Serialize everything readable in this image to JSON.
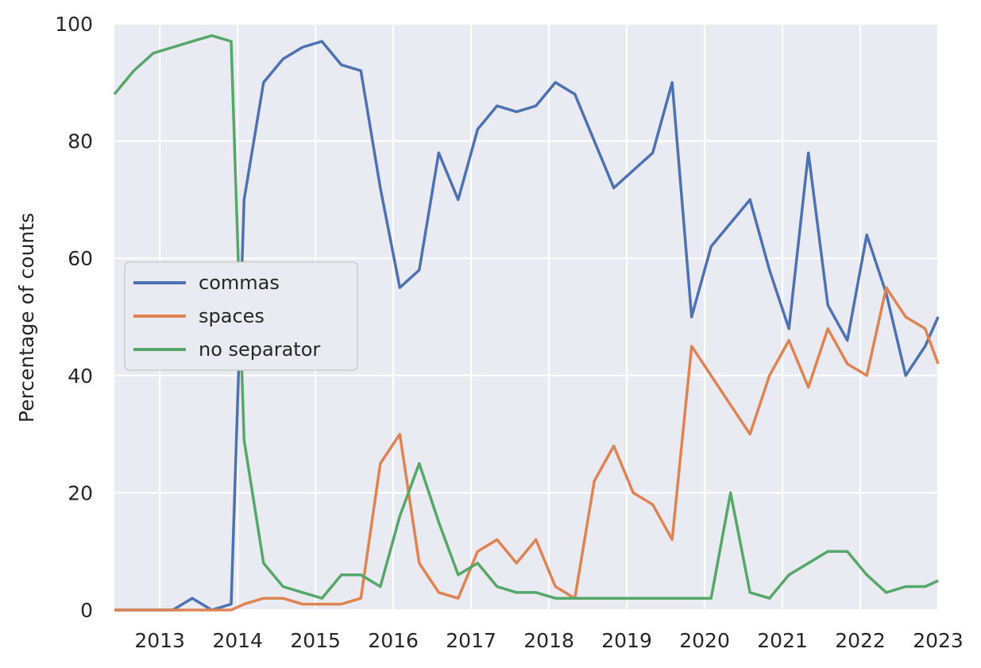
{
  "chart_data": {
    "type": "line",
    "title": "",
    "xlabel": "",
    "ylabel": "Percentage of counts",
    "x_ticks": [
      "2013",
      "2014",
      "2015",
      "2016",
      "2017",
      "2018",
      "2019",
      "2020",
      "2021",
      "2022",
      "2023"
    ],
    "y_ticks": [
      "0",
      "20",
      "40",
      "60",
      "80",
      "100"
    ],
    "xlim": [
      "2012-06",
      "2023-01"
    ],
    "ylim": [
      0,
      100
    ],
    "grid": true,
    "legend_position": "center-left",
    "x": [
      "2012-06",
      "2012-09",
      "2012-12",
      "2013-03",
      "2013-06",
      "2013-09",
      "2013-12",
      "2014-02",
      "2014-05",
      "2014-08",
      "2014-11",
      "2015-02",
      "2015-05",
      "2015-08",
      "2015-11",
      "2016-02",
      "2016-05",
      "2016-08",
      "2016-11",
      "2017-02",
      "2017-05",
      "2017-08",
      "2017-11",
      "2018-02",
      "2018-05",
      "2018-08",
      "2018-11",
      "2019-02",
      "2019-05",
      "2019-08",
      "2019-11",
      "2020-02",
      "2020-05",
      "2020-08",
      "2020-11",
      "2021-02",
      "2021-05",
      "2021-08",
      "2021-11",
      "2022-02",
      "2022-05",
      "2022-08",
      "2022-11",
      "2023-01"
    ],
    "series": [
      {
        "name": "commas",
        "color": "#4c72b0",
        "values": [
          0,
          0,
          0,
          0,
          2,
          0,
          1,
          70,
          90,
          94,
          96,
          97,
          93,
          92,
          72,
          55,
          58,
          78,
          70,
          82,
          86,
          85,
          86,
          90,
          88,
          80,
          72,
          75,
          78,
          90,
          50,
          62,
          66,
          70,
          58,
          48,
          78,
          52,
          46,
          64,
          54,
          40,
          45,
          50
        ]
      },
      {
        "name": "spaces",
        "color": "#dd8452",
        "values": [
          0,
          0,
          0,
          0,
          0,
          0,
          0,
          1,
          2,
          2,
          1,
          1,
          1,
          2,
          25,
          30,
          8,
          3,
          2,
          10,
          12,
          8,
          12,
          4,
          2,
          22,
          28,
          20,
          18,
          12,
          45,
          40,
          35,
          30,
          40,
          46,
          38,
          48,
          42,
          40,
          55,
          50,
          48,
          42
        ]
      },
      {
        "name": "no separator",
        "color": "#55a868",
        "values": [
          88,
          92,
          95,
          96,
          97,
          98,
          97,
          29,
          8,
          4,
          3,
          2,
          6,
          6,
          4,
          16,
          25,
          15,
          6,
          8,
          4,
          3,
          3,
          2,
          2,
          2,
          2,
          2,
          2,
          2,
          2,
          2,
          20,
          3,
          2,
          6,
          8,
          10,
          10,
          6,
          3,
          4,
          4,
          5
        ]
      }
    ]
  }
}
